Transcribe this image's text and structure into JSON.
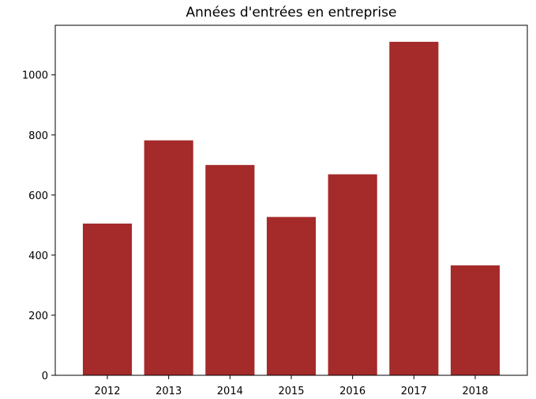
{
  "chart_data": {
    "type": "bar",
    "title": "Années d'entrées en entreprise",
    "xlabel": "",
    "ylabel": "",
    "categories": [
      "2012",
      "2013",
      "2014",
      "2015",
      "2016",
      "2017",
      "2018"
    ],
    "values": [
      505,
      782,
      700,
      527,
      669,
      1110,
      366
    ],
    "ylim": [
      0,
      1165
    ],
    "yticks": [
      0,
      200,
      400,
      600,
      800,
      1000
    ],
    "grid": false,
    "bar_color": "#a52a2a"
  }
}
